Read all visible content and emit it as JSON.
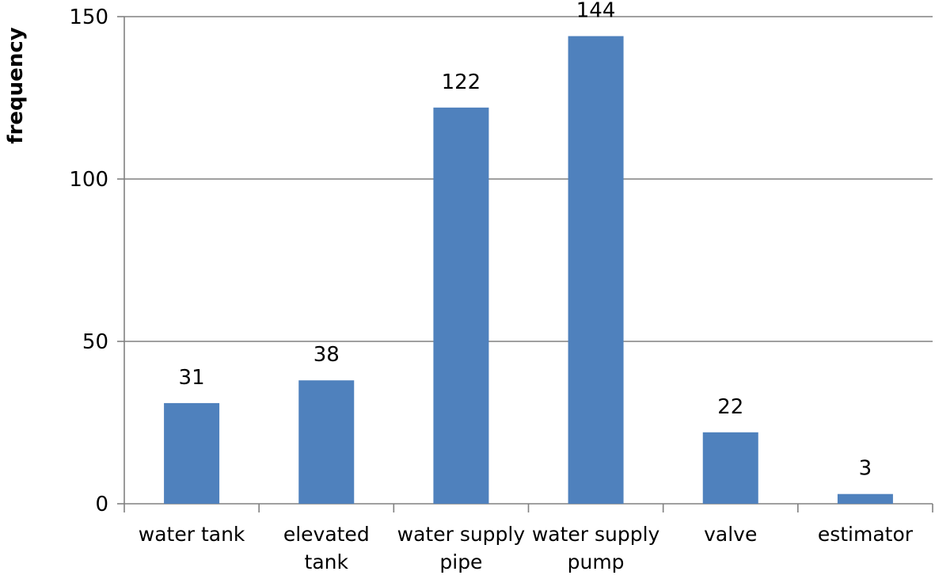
{
  "chart_data": {
    "type": "bar",
    "title": "",
    "xlabel": "",
    "ylabel": "frequency",
    "categories": [
      [
        "water tank"
      ],
      [
        "elevated",
        "tank"
      ],
      [
        "water supply",
        "pipe"
      ],
      [
        "water supply",
        "pump"
      ],
      [
        "valve"
      ],
      [
        "estimator"
      ]
    ],
    "values": [
      31,
      38,
      122,
      144,
      22,
      3
    ],
    "data_labels": [
      "31",
      "38",
      "122",
      "144",
      "22",
      "3"
    ],
    "ylim": [
      0,
      150
    ],
    "yticks": [
      0,
      50,
      100,
      150
    ],
    "grid": true,
    "legend": "none",
    "colors": {
      "bar": "#4F81BD",
      "grid": "#808080",
      "axis": "#808080",
      "text": "#000000"
    }
  }
}
